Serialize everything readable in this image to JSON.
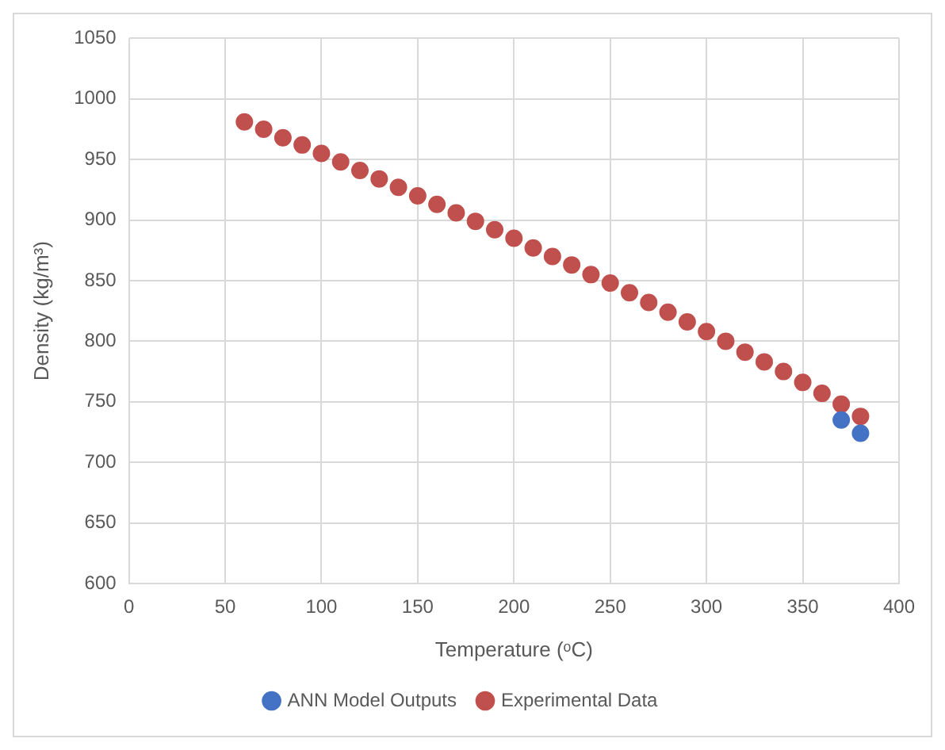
{
  "chart_data": {
    "type": "scatter",
    "xlabel": "Temperature (ᵒC)",
    "ylabel": "Density (kg/m³)",
    "xlim": [
      0,
      400
    ],
    "xticks": [
      0,
      50,
      100,
      150,
      200,
      250,
      300,
      350,
      400
    ],
    "ylim": [
      600,
      1050
    ],
    "yticks": [
      600,
      650,
      700,
      750,
      800,
      850,
      900,
      950,
      1000,
      1050
    ],
    "grid": true,
    "legend": "bottom",
    "marker": "circle",
    "series": [
      {
        "name": "ANN Model Outputs",
        "color": "#4472c4",
        "x": [
          370,
          380
        ],
        "values": [
          735,
          724
        ]
      },
      {
        "name": "Experimental Data",
        "color": "#c0504d",
        "x": [
          60,
          70,
          80,
          90,
          100,
          110,
          120,
          130,
          140,
          150,
          160,
          170,
          180,
          190,
          200,
          210,
          220,
          230,
          240,
          250,
          260,
          270,
          280,
          290,
          300,
          310,
          320,
          330,
          340,
          350,
          360,
          370,
          380
        ],
        "values": [
          981,
          975,
          968,
          962,
          955,
          948,
          941,
          934,
          927,
          920,
          913,
          906,
          899,
          892,
          885,
          877,
          870,
          863,
          855,
          848,
          840,
          832,
          824,
          816,
          808,
          800,
          791,
          783,
          775,
          766,
          757,
          748,
          738
        ]
      }
    ]
  }
}
